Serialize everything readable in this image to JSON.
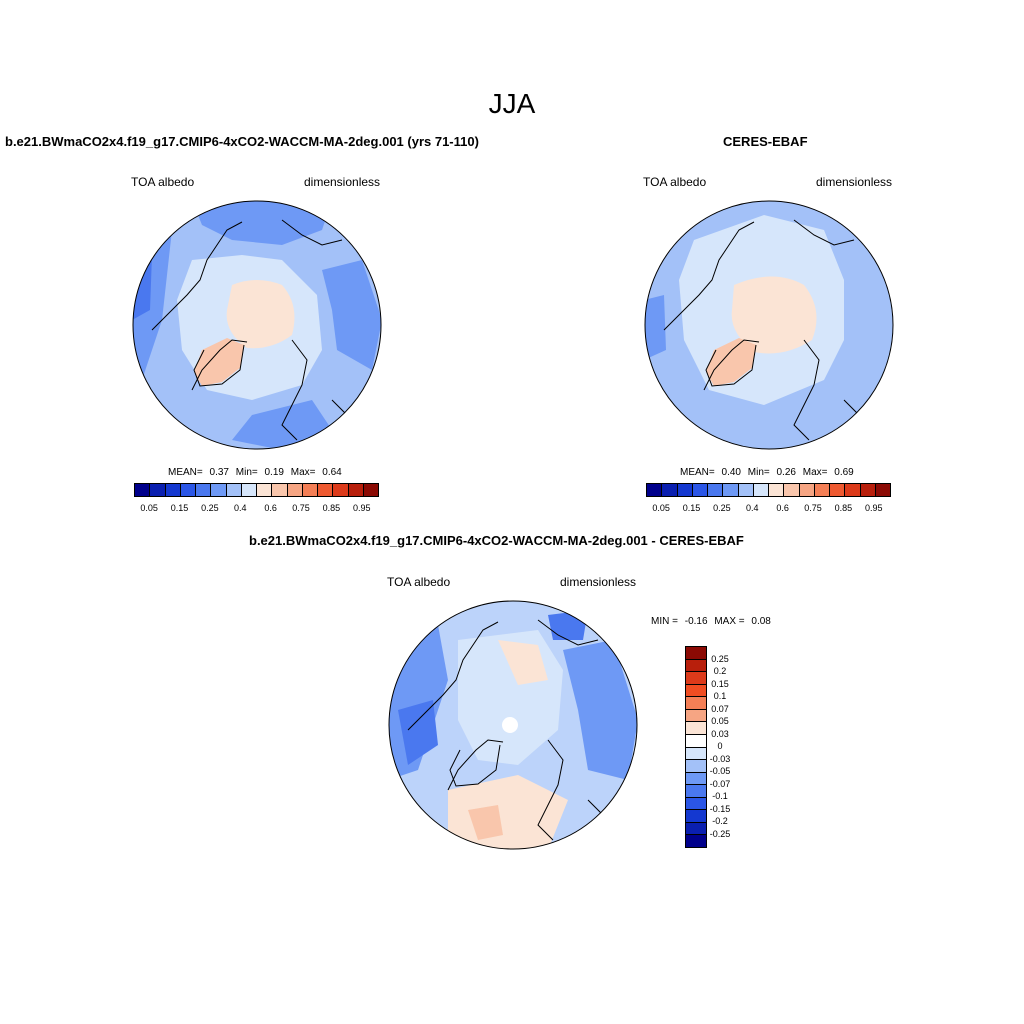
{
  "figure": {
    "season": "JJA"
  },
  "panels": {
    "model": {
      "title": "b.e21.BWmaCO2x4.f19_g17.CMIP6-4xCO2-WACCM-MA-2deg.001 (yrs 71-110)",
      "left_label": "TOA albedo",
      "right_label": "dimensionless",
      "mean_label": "MEAN=",
      "mean_value": "0.37",
      "min_label": "Min=",
      "min_value": "0.19",
      "max_label": "Max=",
      "max_value": "0.64"
    },
    "obs": {
      "title": "CERES-EBAF",
      "left_label": "TOA albedo",
      "right_label": "dimensionless",
      "mean_label": "MEAN=",
      "mean_value": "0.40",
      "min_label": "Min=",
      "min_value": "0.26",
      "max_label": "Max=",
      "max_value": "0.69"
    },
    "diff": {
      "title": "b.e21.BWmaCO2x4.f19_g17.CMIP6-4xCO2-WACCM-MA-2deg.001 - CERES-EBAF",
      "left_label": "TOA albedo",
      "right_label": "dimensionless",
      "min_label": "MIN =",
      "min_value": "-0.16",
      "max_label": "MAX =",
      "max_value": "0.08"
    }
  },
  "colorbars": {
    "albedo": {
      "colors": [
        "#00008b",
        "#0a1fb0",
        "#1438d0",
        "#2b56e6",
        "#4a78ef",
        "#6e99f5",
        "#a3c1f8",
        "#d6e6fb",
        "#fbe4d5",
        "#f9c6ac",
        "#f6a583",
        "#f47f56",
        "#ef5a31",
        "#dc3a1a",
        "#b81f0c",
        "#8b0a04"
      ],
      "tick_labels": [
        "0.05",
        "0.15",
        "0.25",
        "0.4",
        "0.6",
        "0.75",
        "0.85",
        "0.95"
      ]
    },
    "diff": {
      "colors": [
        "#8b0a04",
        "#b81f0c",
        "#dc3a1a",
        "#f04d22",
        "#f47f56",
        "#f6a583",
        "#fbe4d5",
        "#ffffff",
        "#d6e6fb",
        "#a3c1f8",
        "#6e99f5",
        "#4a78ef",
        "#2b56e6",
        "#1438d0",
        "#0a1fb0",
        "#00008b"
      ],
      "tick_labels": [
        "0.25",
        "0.2",
        "0.15",
        "0.1",
        "0.07",
        "0.05",
        "0.03",
        "0",
        "-0.03",
        "-0.05",
        "-0.07",
        "-0.1",
        "-0.15",
        "-0.2",
        "-0.25"
      ]
    }
  },
  "colors": {
    "map_base_model": "#a3c1f8",
    "map_base_obs": "#a3c1f8",
    "map_base_diff": "#bcd3fa",
    "light_blue": "#d6e6fb",
    "mid_blue": "#6e99f5",
    "dark_blue": "#4a78ef",
    "pale_orange": "#fbe4d5",
    "light_orange": "#f9c6ac",
    "coast": "#000000"
  }
}
